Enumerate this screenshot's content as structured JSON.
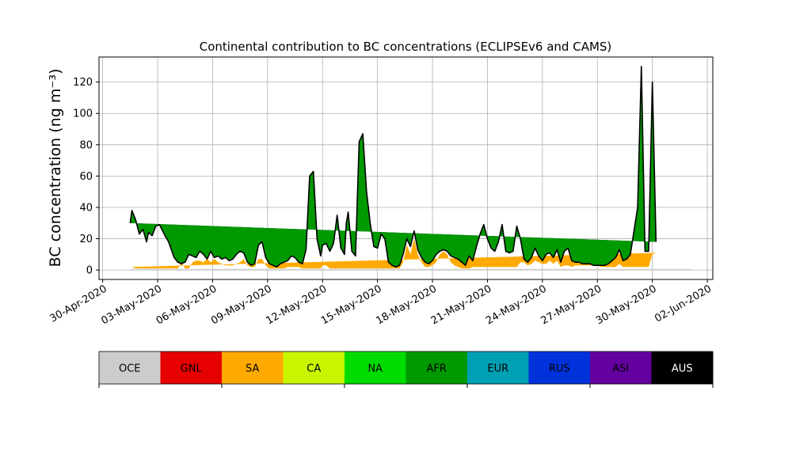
{
  "chart_data": {
    "type": "area",
    "title": "Continental contribution to BC concentrations (ECLIPSEv6 and CAMS)",
    "ylabel": "BC concentration (ng m⁻³)",
    "xlabel": "",
    "grid": true,
    "ylim": [
      -6,
      136
    ],
    "xlim_days": [
      -0.2,
      33.3
    ],
    "yticks": [
      0,
      20,
      40,
      60,
      80,
      100,
      120
    ],
    "x_ticks": [
      {
        "day": 0,
        "label": "30-Apr-2020"
      },
      {
        "day": 3,
        "label": "03-May-2020"
      },
      {
        "day": 6,
        "label": "06-May-2020"
      },
      {
        "day": 9,
        "label": "09-May-2020"
      },
      {
        "day": 12,
        "label": "12-May-2020"
      },
      {
        "day": 15,
        "label": "15-May-2020"
      },
      {
        "day": 18,
        "label": "18-May-2020"
      },
      {
        "day": 21,
        "label": "21-May-2020"
      },
      {
        "day": 24,
        "label": "24-May-2020"
      },
      {
        "day": 27,
        "label": "27-May-2020"
      },
      {
        "day": 30,
        "label": "30-May-2020"
      },
      {
        "day": 33,
        "label": "02-Jun-2020"
      }
    ],
    "x_days": [
      1.5,
      1.6,
      1.8,
      2.0,
      2.2,
      2.4,
      2.5,
      2.7,
      2.9,
      3.1,
      3.4,
      3.6,
      3.9,
      4.1,
      4.3,
      4.5,
      4.7,
      4.9,
      5.1,
      5.3,
      5.5,
      5.7,
      5.9,
      6.1,
      6.3,
      6.5,
      6.7,
      6.9,
      7.1,
      7.3,
      7.5,
      7.7,
      7.9,
      8.1,
      8.3,
      8.5,
      8.7,
      8.9,
      9.1,
      9.3,
      9.5,
      9.7,
      9.9,
      10.1,
      10.3,
      10.5,
      10.7,
      10.9,
      11.1,
      11.3,
      11.5,
      11.7,
      11.9,
      12.0,
      12.2,
      12.4,
      12.6,
      12.8,
      13.0,
      13.2,
      13.3,
      13.4,
      13.6,
      13.8,
      14.0,
      14.2,
      14.4,
      14.6,
      14.8,
      15.0,
      15.2,
      15.4,
      15.6,
      15.8,
      16.0,
      16.2,
      16.4,
      16.6,
      16.8,
      17.0,
      17.2,
      17.4,
      17.6,
      17.8,
      18.0,
      18.2,
      18.4,
      18.6,
      18.8,
      19.0,
      19.2,
      19.4,
      19.6,
      19.8,
      20.0,
      20.2,
      20.4,
      20.6,
      20.8,
      21.0,
      21.2,
      21.4,
      21.6,
      21.8,
      22.0,
      22.2,
      22.4,
      22.6,
      22.8,
      23.0,
      23.2,
      23.4,
      23.6,
      23.8,
      24.0,
      24.2,
      24.4,
      24.6,
      24.8,
      25.0,
      25.2,
      25.4,
      25.6,
      25.8,
      26.0,
      26.2,
      26.4,
      26.6,
      26.8,
      27.0,
      27.2,
      27.4,
      27.6,
      27.8,
      28.0,
      28.2,
      28.4,
      28.6,
      28.8,
      29.0,
      29.2,
      29.4,
      29.6,
      29.8,
      30.0,
      30.2,
      30.4,
      30.6,
      30.8,
      31.0,
      31.2,
      31.4,
      31.6,
      31.8,
      32.0,
      32.1
    ],
    "total": [
      30,
      38,
      32,
      23,
      26,
      18,
      24,
      22,
      28,
      29,
      22,
      18,
      8,
      5,
      4,
      5,
      10,
      9,
      8,
      12,
      10,
      7,
      12,
      8,
      9,
      7,
      8,
      6,
      7,
      10,
      12,
      11,
      5,
      3,
      4,
      16,
      18,
      8,
      4,
      3,
      2,
      4,
      5,
      6,
      9,
      8,
      5,
      4,
      13,
      60,
      63,
      20,
      9,
      16,
      17,
      12,
      17,
      35,
      14,
      10,
      30,
      37,
      12,
      9,
      82,
      87,
      50,
      30,
      15,
      14,
      23,
      20,
      5,
      3,
      2,
      3,
      10,
      20,
      15,
      25,
      13,
      8,
      5,
      4,
      6,
      10,
      12,
      13,
      12,
      9,
      8,
      7,
      5,
      3,
      9,
      6,
      15,
      23,
      29,
      20,
      14,
      12,
      18,
      29,
      12,
      11,
      12,
      28,
      20,
      7,
      5,
      8,
      14,
      9,
      6,
      10,
      11,
      8,
      13,
      5,
      12,
      14,
      6,
      5,
      5,
      4,
      4,
      4,
      3,
      3,
      3,
      3,
      4,
      6,
      8,
      13,
      6,
      7,
      10,
      25,
      40,
      130,
      12,
      12,
      120,
      18
    ],
    "series": [
      {
        "name": "SA",
        "values": [
          2,
          2,
          1,
          1,
          1,
          1,
          1,
          1,
          1,
          1,
          1,
          1,
          1,
          1,
          5,
          1,
          1,
          5,
          6,
          6,
          5,
          7,
          5,
          7,
          5,
          4,
          3,
          3,
          3,
          4,
          5,
          7,
          3,
          2,
          2,
          7,
          7,
          3,
          1,
          1,
          1,
          1,
          1,
          2,
          2,
          2,
          2,
          1,
          1,
          1,
          1,
          1,
          1,
          3,
          3,
          1,
          1,
          1,
          1,
          1,
          1,
          1,
          1,
          1,
          1,
          1,
          1,
          1,
          1,
          1,
          1,
          1,
          1,
          1,
          1,
          1,
          5,
          16,
          10,
          20,
          10,
          5,
          2,
          2,
          3,
          5,
          10,
          12,
          10,
          5,
          3,
          2,
          1,
          1,
          1,
          2,
          2,
          2,
          2,
          2,
          2,
          2,
          2,
          2,
          2,
          2,
          2,
          2,
          5,
          5,
          3,
          4,
          6,
          5,
          4,
          4,
          6,
          4,
          6,
          2,
          3,
          3,
          2,
          3,
          3,
          3,
          3,
          3,
          3,
          3,
          2,
          2,
          2,
          2,
          2,
          4,
          2,
          2,
          2,
          2,
          2,
          2,
          2,
          2,
          10,
          11
        ]
      },
      {
        "name": "AFR",
        "values": [
          28,
          36,
          31,
          22,
          25,
          17,
          23,
          21,
          27,
          28,
          21,
          17,
          7,
          4,
          0,
          4,
          9,
          4,
          2,
          6,
          5,
          0,
          7,
          1,
          4,
          3,
          5,
          3,
          4,
          6,
          7,
          4,
          2,
          1,
          2,
          9,
          11,
          5,
          3,
          2,
          1,
          3,
          4,
          4,
          7,
          6,
          3,
          3,
          12,
          59,
          62,
          19,
          8,
          13,
          14,
          11,
          16,
          34,
          13,
          9,
          29,
          36,
          11,
          8,
          81,
          86,
          49,
          29,
          14,
          13,
          22,
          19,
          4,
          2,
          1,
          2,
          5,
          4,
          5,
          5,
          3,
          3,
          3,
          2,
          3,
          5,
          2,
          1,
          2,
          4,
          5,
          5,
          4,
          2,
          8,
          4,
          13,
          21,
          27,
          18,
          12,
          10,
          16,
          27,
          10,
          9,
          10,
          26,
          15,
          2,
          2,
          4,
          8,
          4,
          2,
          6,
          5,
          4,
          7,
          3,
          9,
          11,
          4,
          2,
          2,
          1,
          1,
          1,
          0,
          0,
          1,
          1,
          2,
          4,
          6,
          9,
          4,
          5,
          8,
          23,
          38,
          128,
          10,
          10,
          110,
          7
        ]
      }
    ]
  },
  "colorbar": {
    "labels": [
      "OCE",
      "GNL",
      "SA",
      "CA",
      "NA",
      "AFR",
      "EUR",
      "RUS",
      "ASI",
      "AUS"
    ],
    "colors": [
      "#cccccc",
      "#e60000",
      "#ffaa00",
      "#c8f500",
      "#00dc00",
      "#009900",
      "#00a0b4",
      "#0032dc",
      "#6400a0",
      "#000000"
    ],
    "text_colors": [
      "#000000",
      "#000000",
      "#000000",
      "#000000",
      "#000000",
      "#000000",
      "#000000",
      "#000000",
      "#000000",
      "#ffffff"
    ]
  }
}
